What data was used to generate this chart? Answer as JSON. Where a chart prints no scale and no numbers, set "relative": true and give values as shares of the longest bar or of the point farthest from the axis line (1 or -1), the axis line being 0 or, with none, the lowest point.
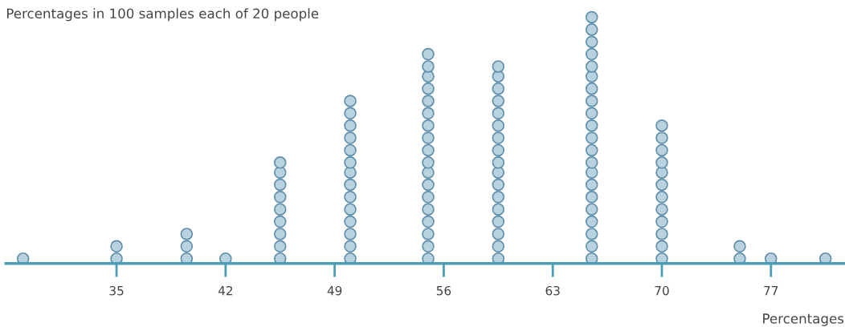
{
  "chart_data": {
    "type": "scatter",
    "title": "Percentages in 100 samples each of 20 people",
    "xlabel": "Percentages",
    "relative": true,
    "x": [
      29,
      35,
      35,
      39.5,
      39.5,
      39.5,
      42,
      45.5,
      45.5,
      45.5,
      45.5,
      45.5,
      45.5,
      45.5,
      45.5,
      45.5,
      50,
      50,
      50,
      50,
      50,
      50,
      50,
      50,
      50,
      50,
      50,
      50,
      50,
      50,
      55,
      55,
      55,
      55,
      55,
      55,
      55,
      55,
      55,
      55,
      55,
      55,
      55,
      55,
      55,
      55,
      55,
      55,
      59.5,
      59.5,
      59.5,
      59.5,
      59.5,
      59.5,
      59.5,
      59.5,
      59.5,
      59.5,
      59.5,
      59.5,
      59.5,
      59.5,
      59.5,
      59.5,
      59.5,
      65.5,
      65.5,
      65.5,
      65.5,
      65.5,
      65.5,
      65.5,
      65.5,
      65.5,
      65.5,
      65.5,
      65.5,
      65.5,
      65.5,
      65.5,
      65.5,
      65.5,
      65.5,
      65.5,
      65.5,
      65.5,
      70,
      70,
      70,
      70,
      70,
      70,
      70,
      70,
      70,
      70,
      70,
      70,
      75,
      75,
      77,
      80.5
    ],
    "values": [
      0.02,
      0.02,
      0.07,
      0.02,
      0.07,
      0.12,
      0.02,
      0.02,
      0.07,
      0.12,
      0.17,
      0.22,
      0.27,
      0.32,
      0.37,
      0.41,
      0.02,
      0.07,
      0.12,
      0.17,
      0.22,
      0.27,
      0.32,
      0.37,
      0.41,
      0.46,
      0.51,
      0.56,
      0.61,
      0.66,
      0.02,
      0.07,
      0.12,
      0.17,
      0.22,
      0.27,
      0.32,
      0.37,
      0.41,
      0.46,
      0.51,
      0.56,
      0.61,
      0.66,
      0.71,
      0.76,
      0.8,
      0.85,
      0.02,
      0.07,
      0.12,
      0.17,
      0.22,
      0.27,
      0.32,
      0.37,
      0.41,
      0.46,
      0.51,
      0.56,
      0.61,
      0.66,
      0.71,
      0.76,
      0.8,
      0.02,
      0.07,
      0.12,
      0.17,
      0.22,
      0.27,
      0.32,
      0.37,
      0.41,
      0.46,
      0.51,
      0.56,
      0.61,
      0.66,
      0.71,
      0.76,
      0.8,
      0.85,
      0.9,
      0.95,
      1,
      0.02,
      0.07,
      0.12,
      0.17,
      0.22,
      0.27,
      0.32,
      0.37,
      0.41,
      0.46,
      0.51,
      0.56,
      0.02,
      0.07,
      0.02,
      0.02
    ],
    "color": "#b9d2e0",
    "xlim": [
      27.9,
      81.7
    ],
    "xticks": [
      35,
      42,
      49,
      56,
      63,
      70,
      77
    ],
    "tick_labels": "x",
    "marker": "circle"
  }
}
